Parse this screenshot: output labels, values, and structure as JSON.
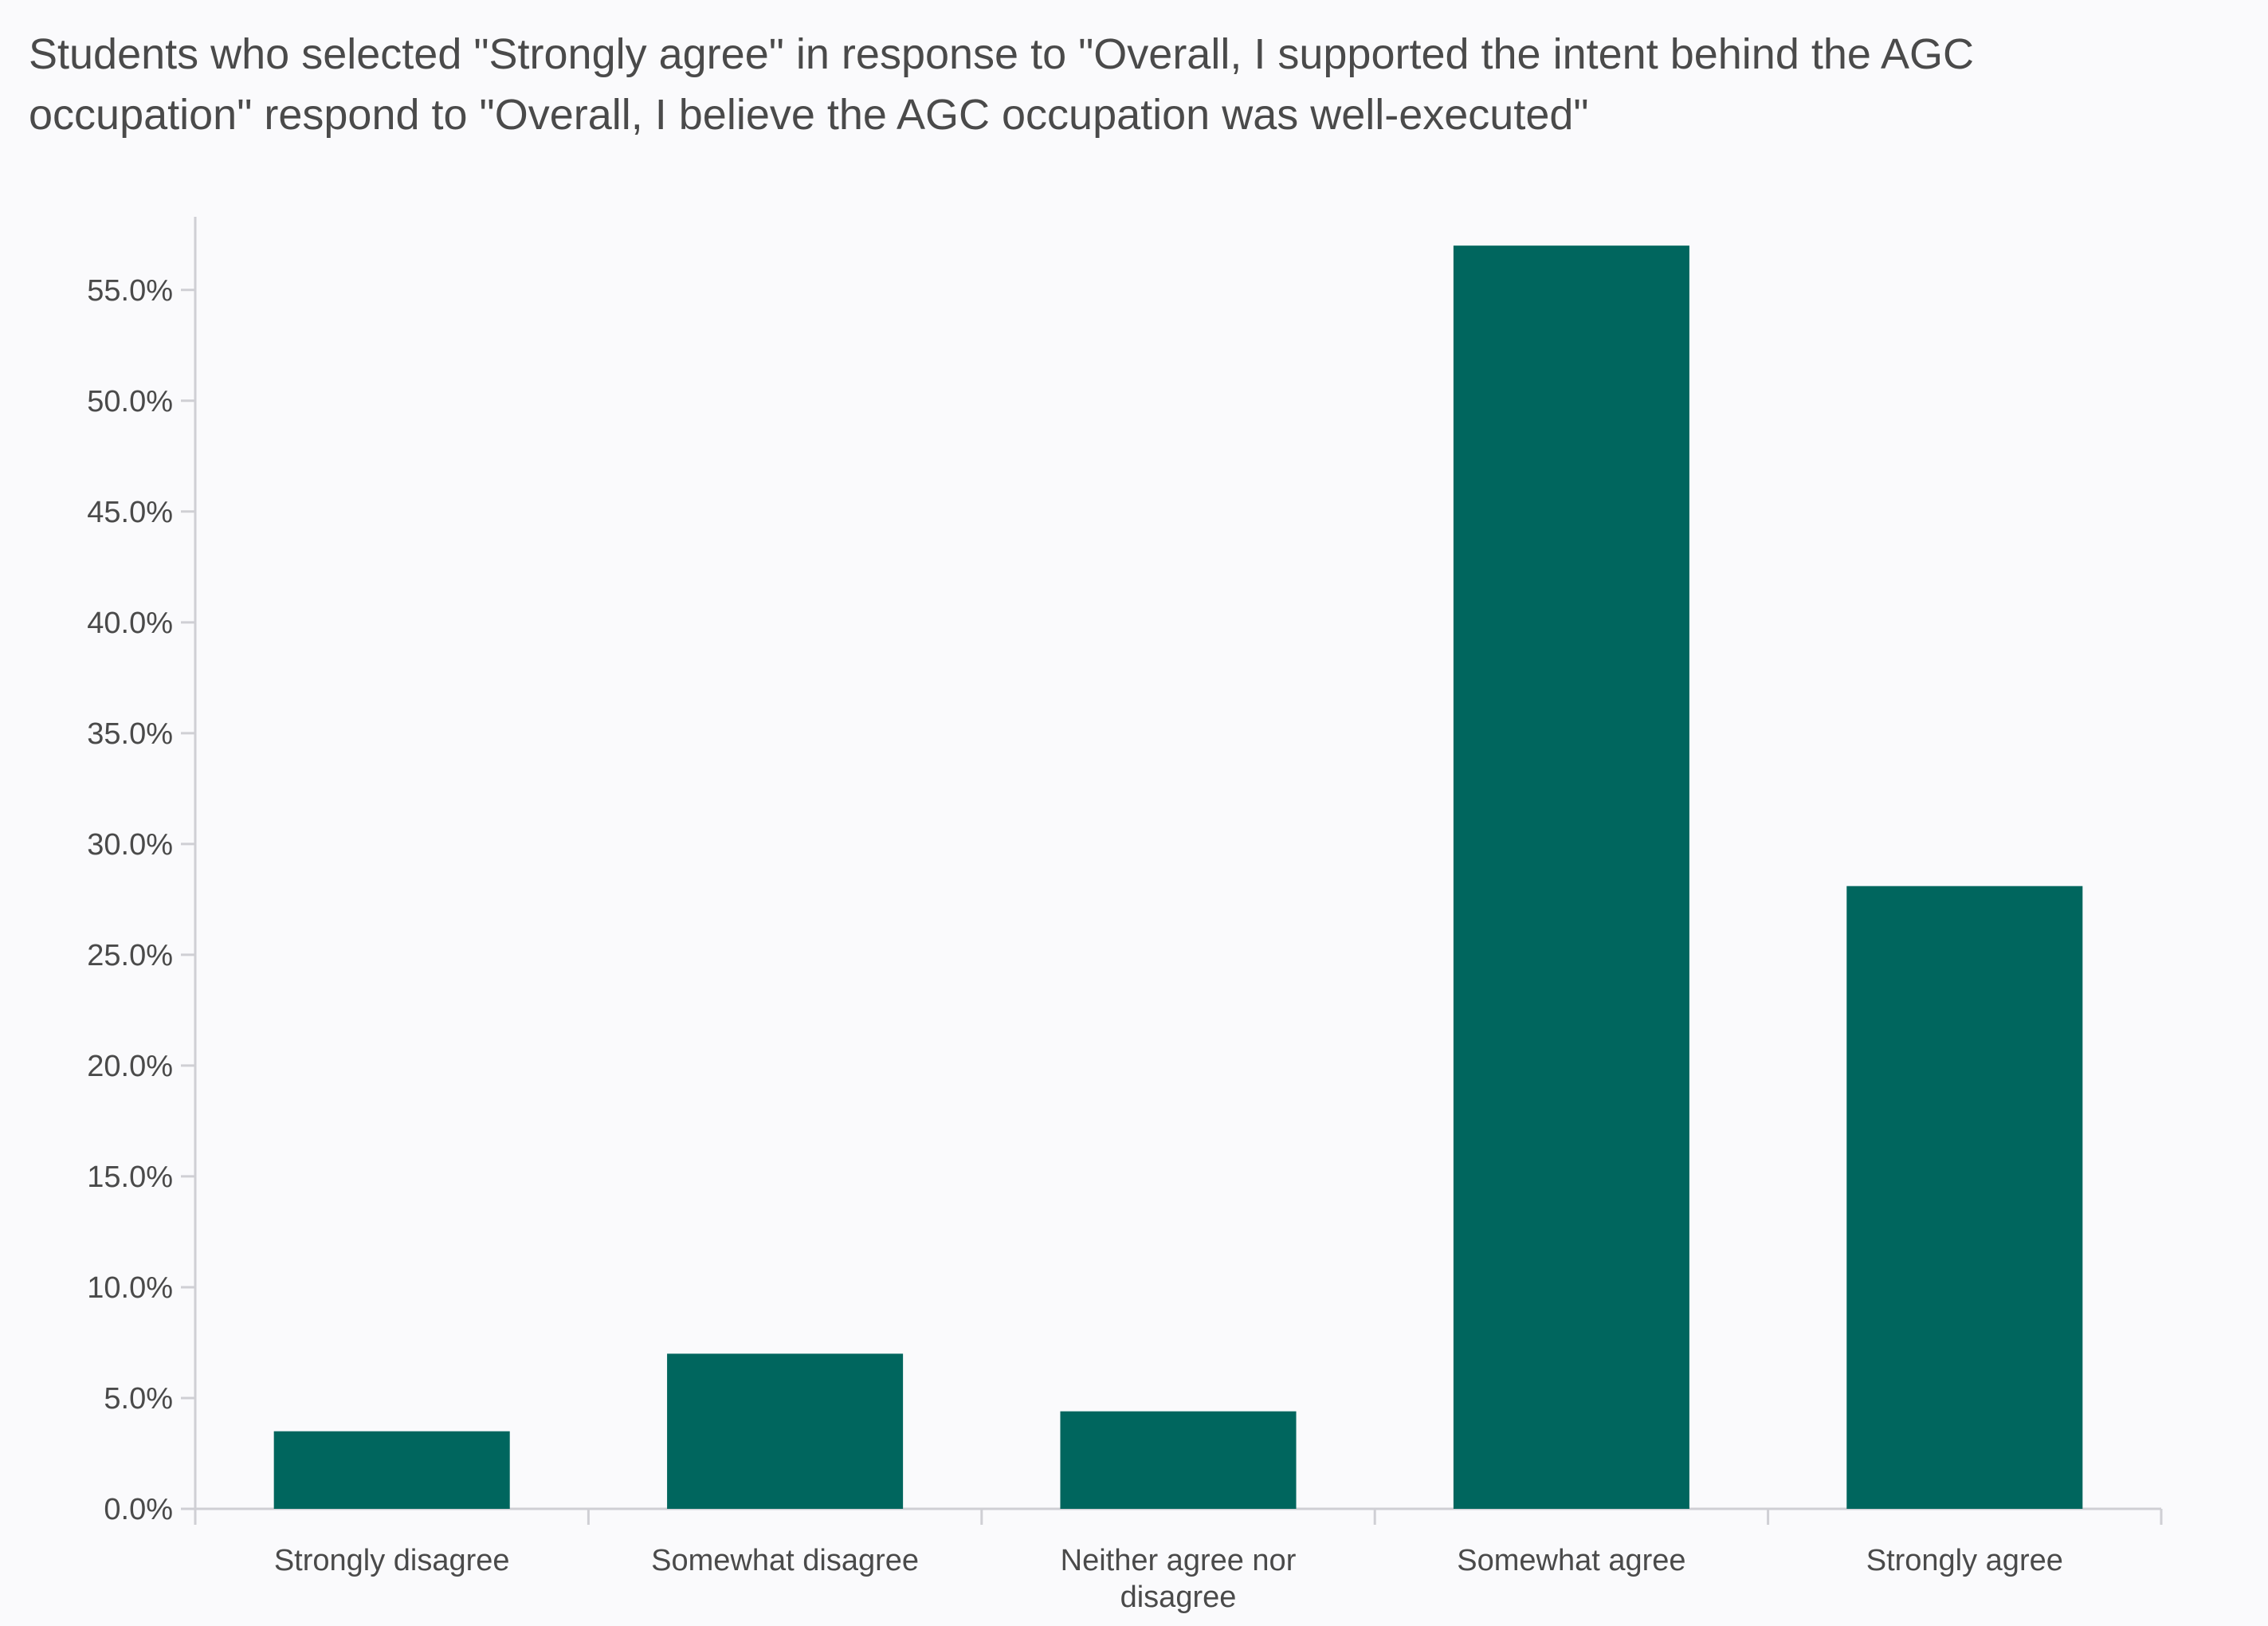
{
  "chart_data": {
    "type": "bar",
    "title": "Students who selected \"Strongly agree\" in response to \"Overall, I supported the intent behind the AGC occupation\" respond to \"Overall, I believe the AGC occupation was well-executed\"",
    "categories": [
      "Strongly disagree",
      "Somewhat disagree",
      "Neither agree nor disagree",
      "Somewhat agree",
      "Strongly agree"
    ],
    "category_lines": [
      [
        "Strongly disagree"
      ],
      [
        "Somewhat disagree"
      ],
      [
        "Neither agree nor",
        "disagree"
      ],
      [
        "Somewhat agree"
      ],
      [
        "Strongly agree"
      ]
    ],
    "values": [
      3.5,
      7.0,
      4.4,
      57.0,
      28.1
    ],
    "xlabel": "",
    "ylabel": "",
    "ylim": [
      0,
      58.3
    ],
    "yticks": [
      0,
      5,
      10,
      15,
      20,
      25,
      30,
      35,
      40,
      45,
      50,
      55
    ],
    "ytick_labels": [
      "0.0%",
      "5.0%",
      "10.0%",
      "15.0%",
      "20.0%",
      "25.0%",
      "30.0%",
      "35.0%",
      "40.0%",
      "45.0%",
      "50.0%",
      "55.0%"
    ],
    "grid": false,
    "legend": "none",
    "bar_color": "#00665e",
    "axis_color": "#cfcfd4"
  }
}
